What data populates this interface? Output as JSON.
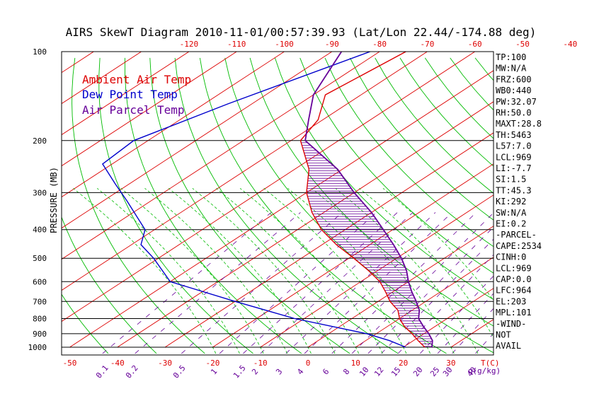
{
  "chart_data": {
    "type": "skewt",
    "title": "AIRS SkewT Diagram 2010-11-01/00:57:39.93 (Lat/Lon 22.44/-174.88 deg)",
    "ylabel": "PRESSURE (MB)",
    "pressure_ticks": [
      100,
      200,
      300,
      400,
      500,
      600,
      700,
      800,
      900,
      1000
    ],
    "bottom_temp_ticks": [
      "-50",
      "-40",
      "-30",
      "-20",
      "-10",
      "0",
      "10",
      "20",
      "30"
    ],
    "top_temp_ticks": [
      "-120",
      "-110",
      "-100",
      "-90",
      "-80",
      "-70",
      "-60",
      "-50",
      "-40"
    ],
    "bottom_temp_label": "T(C)",
    "mixing_ratio_ticks": [
      "0.1",
      "0.2",
      "0.5",
      "1",
      "1.5",
      "2",
      "3",
      "4",
      "6",
      "8",
      "10",
      "12",
      "15",
      "20",
      "25",
      "30",
      "40"
    ],
    "mixing_ratio_label": "q(g/kg)",
    "legend": [
      {
        "label": "Ambient Air Temp",
        "color": "#dd0000"
      },
      {
        "label": "Dew Point Temp",
        "color": "#0000cc"
      },
      {
        "label": "Air Parcel Temp",
        "color": "#660099"
      }
    ],
    "series": [
      {
        "name": "Ambient Air Temp",
        "color": "#dd0000",
        "points": [
          [
            100,
            -74.5
          ],
          [
            140,
            -77.5
          ],
          [
            170,
            -71
          ],
          [
            200,
            -68
          ],
          [
            250,
            -57
          ],
          [
            300,
            -50
          ],
          [
            350,
            -42.5
          ],
          [
            400,
            -35
          ],
          [
            450,
            -27
          ],
          [
            500,
            -19
          ],
          [
            550,
            -12
          ],
          [
            600,
            -6
          ],
          [
            650,
            -1.5
          ],
          [
            700,
            2.5
          ],
          [
            750,
            7
          ],
          [
            800,
            10
          ],
          [
            850,
            13.5
          ],
          [
            900,
            17.5
          ],
          [
            950,
            21
          ],
          [
            1000,
            24.5
          ]
        ]
      },
      {
        "name": "Dew Point Temp",
        "color": "#0000cc",
        "points": [
          [
            100,
            -82
          ],
          [
            150,
            -95
          ],
          [
            200,
            -103
          ],
          [
            240,
            -102
          ],
          [
            280,
            -93
          ],
          [
            320,
            -85
          ],
          [
            400,
            -72
          ],
          [
            450,
            -68
          ],
          [
            500,
            -61
          ],
          [
            600,
            -50
          ],
          [
            700,
            -30
          ],
          [
            800,
            -12
          ],
          [
            900,
            8
          ],
          [
            950,
            15
          ],
          [
            1000,
            20.5
          ]
        ]
      },
      {
        "name": "Air Parcel Temp",
        "color": "#660099",
        "points": [
          [
            100,
            -88
          ],
          [
            140,
            -80
          ],
          [
            170,
            -73
          ],
          [
            200,
            -67
          ],
          [
            250,
            -51
          ],
          [
            300,
            -40
          ],
          [
            350,
            -30
          ],
          [
            400,
            -22
          ],
          [
            450,
            -15
          ],
          [
            500,
            -9
          ],
          [
            550,
            -4
          ],
          [
            600,
            0
          ],
          [
            650,
            4
          ],
          [
            700,
            8
          ],
          [
            750,
            11.5
          ],
          [
            800,
            14
          ],
          [
            850,
            17.5
          ],
          [
            900,
            21
          ],
          [
            950,
            24
          ],
          [
            1000,
            26
          ]
        ]
      }
    ],
    "indices": [
      "TP:100",
      "MW:N/A",
      "FRZ:600",
      "WB0:440",
      "PW:32.07",
      "RH:50.0",
      "MAXT:28.8",
      "TH:5463",
      "L57:7.0",
      "LCL:969",
      "LI:-7.7",
      "SI:1.5",
      "TT:45.3",
      "KI:292",
      "SW:N/A",
      "EI:0.2",
      "-PARCEL-",
      "CAPE:2534",
      "CINH:0",
      "LCL:969",
      "CAP:0.0",
      "LFC:964",
      "EL:203",
      "MPL:101",
      "-WIND-",
      "NOT",
      "AVAIL"
    ]
  },
  "colors": {
    "isotherm": "#dd0000",
    "dry_adiabat": "#00bb00",
    "mixing_ratio": "#660099",
    "isobar": "#000000",
    "top_scale": "#dd0000",
    "bottom_scale": "#dd0000",
    "ratio_scale": "#660099"
  }
}
